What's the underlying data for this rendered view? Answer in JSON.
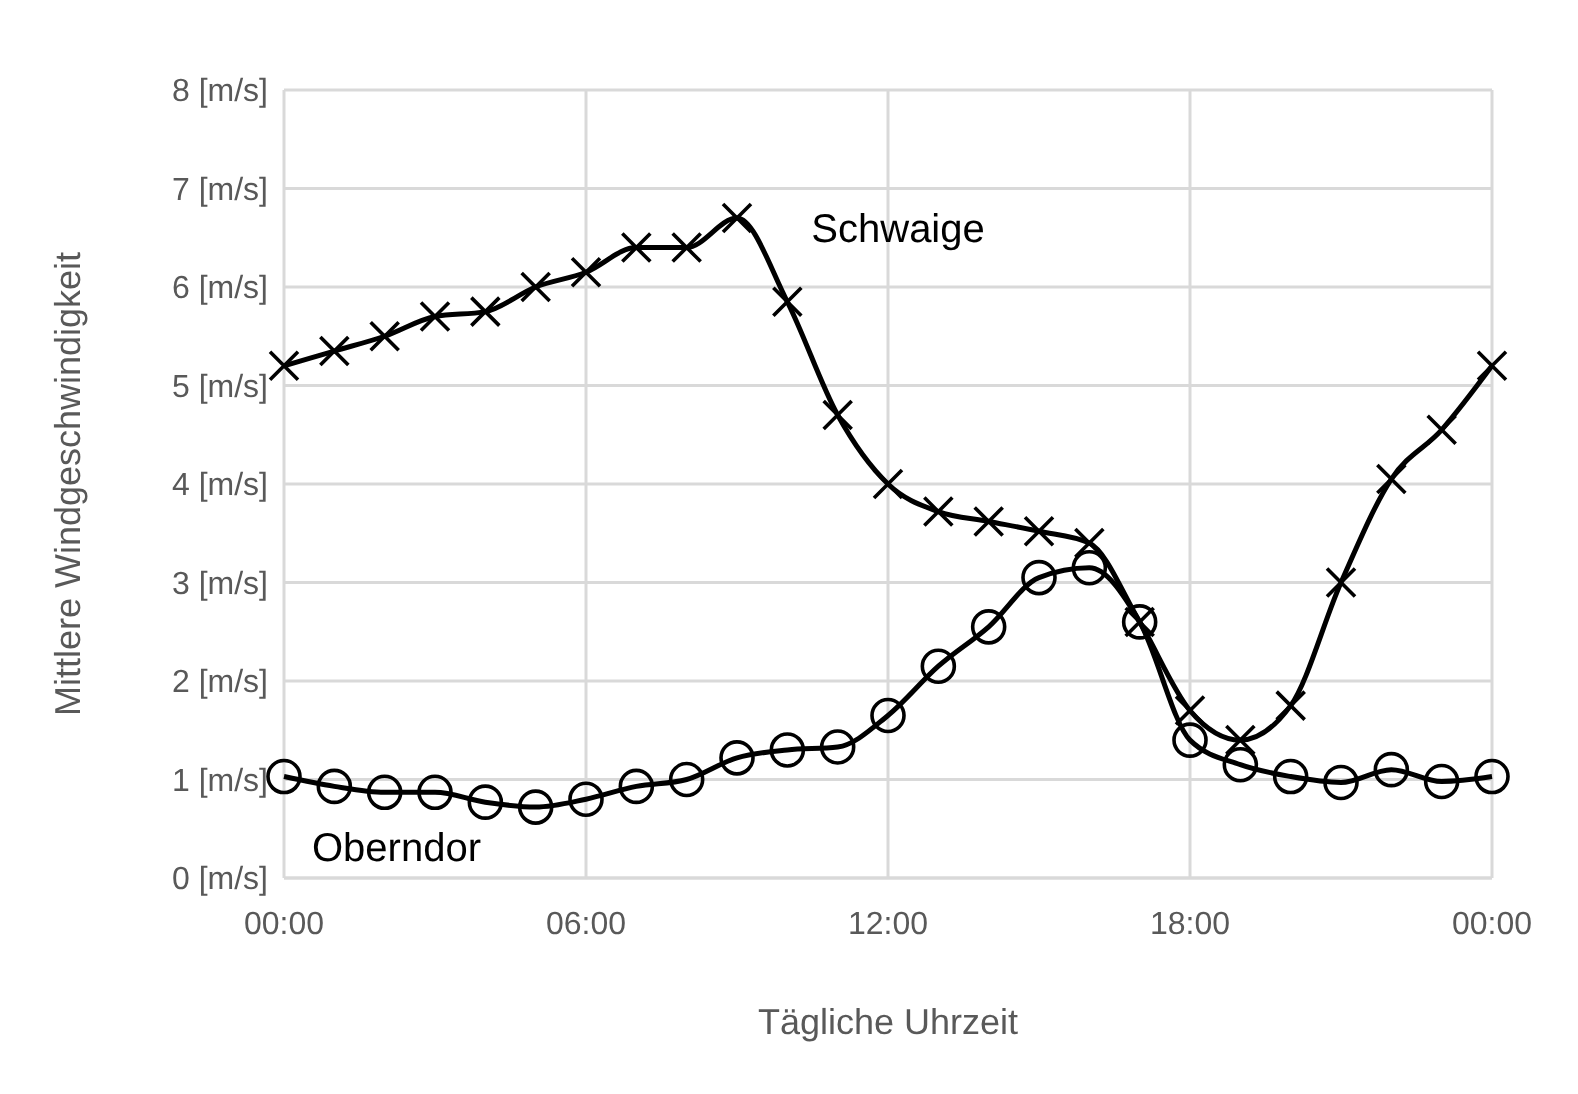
{
  "chart_data": {
    "type": "line",
    "xlabel": "Tägliche Uhrzeit",
    "ylabel": "Mittlere Windgeschwindigkeit",
    "x": [
      0,
      1,
      2,
      3,
      4,
      5,
      6,
      7,
      8,
      9,
      10,
      11,
      12,
      13,
      14,
      15,
      16,
      17,
      18,
      19,
      20,
      21,
      22,
      23,
      24
    ],
    "xlim": [
      0,
      24
    ],
    "xticks": [
      {
        "value": 0,
        "label": "00:00"
      },
      {
        "value": 6,
        "label": "06:00"
      },
      {
        "value": 12,
        "label": "12:00"
      },
      {
        "value": 18,
        "label": "18:00"
      },
      {
        "value": 24,
        "label": "00:00"
      }
    ],
    "ylim": [
      0,
      8
    ],
    "yticks": [
      {
        "value": 0,
        "label": "0 [m/s]"
      },
      {
        "value": 1,
        "label": "1 [m/s]"
      },
      {
        "value": 2,
        "label": "2 [m/s]"
      },
      {
        "value": 3,
        "label": "3 [m/s]"
      },
      {
        "value": 4,
        "label": "4 [m/s]"
      },
      {
        "value": 5,
        "label": "5 [m/s]"
      },
      {
        "value": 6,
        "label": "6 [m/s]"
      },
      {
        "value": 7,
        "label": "7 [m/s]"
      },
      {
        "value": 8,
        "label": "8 [m/s]"
      }
    ],
    "grid": true,
    "legend": false,
    "series": [
      {
        "name": "Schwaige",
        "color": "#000000",
        "marker": "cross",
        "values": [
          5.2,
          5.35,
          5.5,
          5.7,
          5.75,
          6.0,
          6.15,
          6.4,
          6.4,
          6.7,
          5.85,
          4.7,
          4.0,
          3.72,
          3.62,
          3.52,
          3.4,
          2.6,
          1.7,
          1.4,
          1.75,
          3.0,
          4.05,
          4.55,
          5.2
        ]
      },
      {
        "name": "Oberndor",
        "color": "#000000",
        "marker": "circle",
        "values": [
          1.03,
          0.93,
          0.87,
          0.87,
          0.77,
          0.72,
          0.8,
          0.93,
          1.0,
          1.22,
          1.3,
          1.33,
          1.65,
          2.15,
          2.55,
          3.05,
          3.15,
          2.6,
          1.4,
          1.15,
          1.03,
          0.97,
          1.1,
          0.98,
          1.03
        ]
      }
    ]
  }
}
